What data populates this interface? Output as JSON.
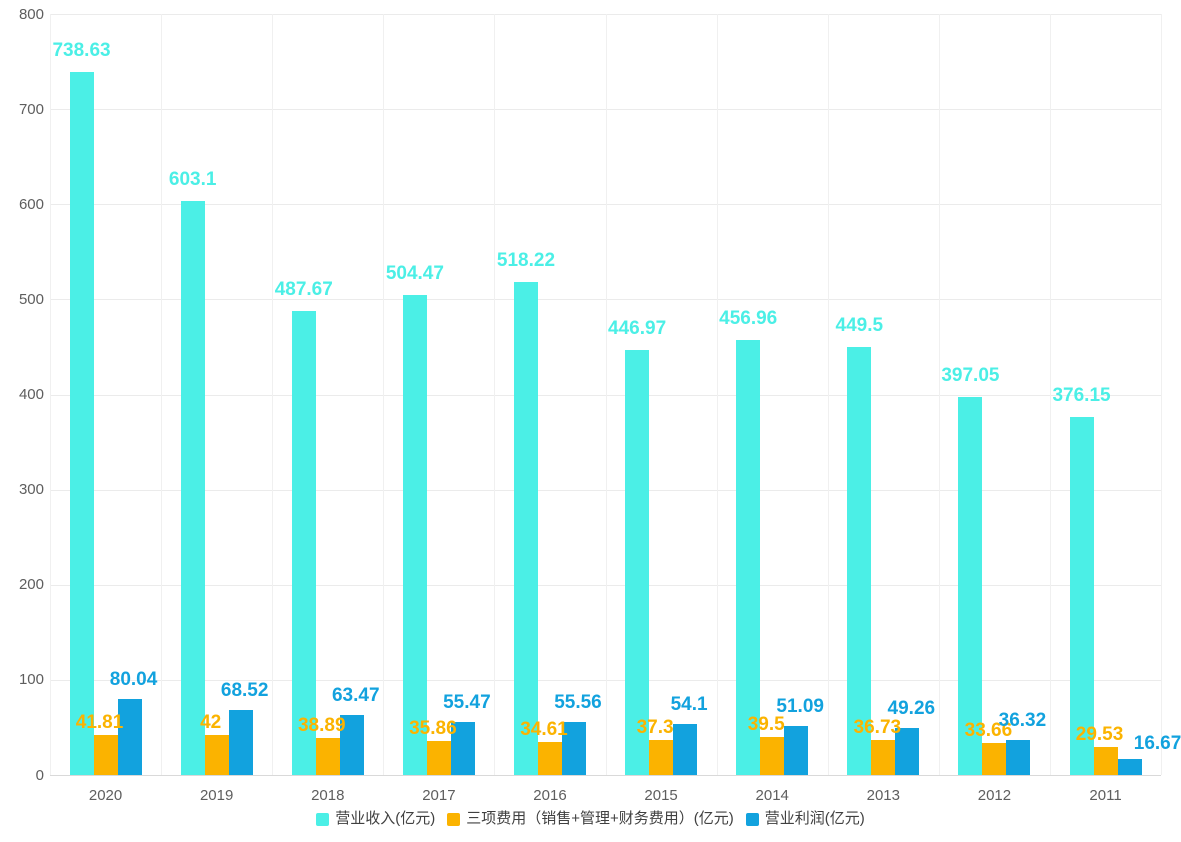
{
  "chart_data": {
    "type": "bar",
    "title": "",
    "categories": [
      "2020",
      "2019",
      "2018",
      "2017",
      "2016",
      "2015",
      "2014",
      "2013",
      "2012",
      "2011"
    ],
    "series": [
      {
        "name": "营业收入(亿元)",
        "color": "#4BEFE6",
        "values": [
          738.63,
          603.1,
          487.67,
          504.47,
          518.22,
          446.97,
          456.96,
          449.5,
          397.05,
          376.15
        ]
      },
      {
        "name": "三项费用（销售+管理+财务费用）(亿元)",
        "color": "#FBB300",
        "values": [
          41.81,
          42,
          38.89,
          35.86,
          34.61,
          37.3,
          39.5,
          36.73,
          33.66,
          29.53
        ]
      },
      {
        "name": "营业利润(亿元)",
        "color": "#12A2DE",
        "values": [
          80.04,
          68.52,
          63.47,
          55.47,
          55.56,
          54.1,
          51.09,
          49.26,
          36.32,
          16.67
        ]
      }
    ],
    "ylim": [
      0,
      800
    ],
    "y_ticks": [
      0,
      100,
      200,
      300,
      400,
      500,
      600,
      700,
      800
    ],
    "grid": true,
    "value_labels": true,
    "legend_position": "bottom",
    "label_gaps": [
      10,
      1,
      8
    ],
    "label_dx": [
      0,
      -6,
      4
    ],
    "label_exceptions": [
      {
        "series": 2,
        "index": 9,
        "dx": 24,
        "dy": 4
      }
    ],
    "axis_text_color": "#5e5e5e",
    "legend_text_color": "#404040",
    "grid_color": "#ebebeb",
    "axis_line_color": "#d9d9d9"
  }
}
